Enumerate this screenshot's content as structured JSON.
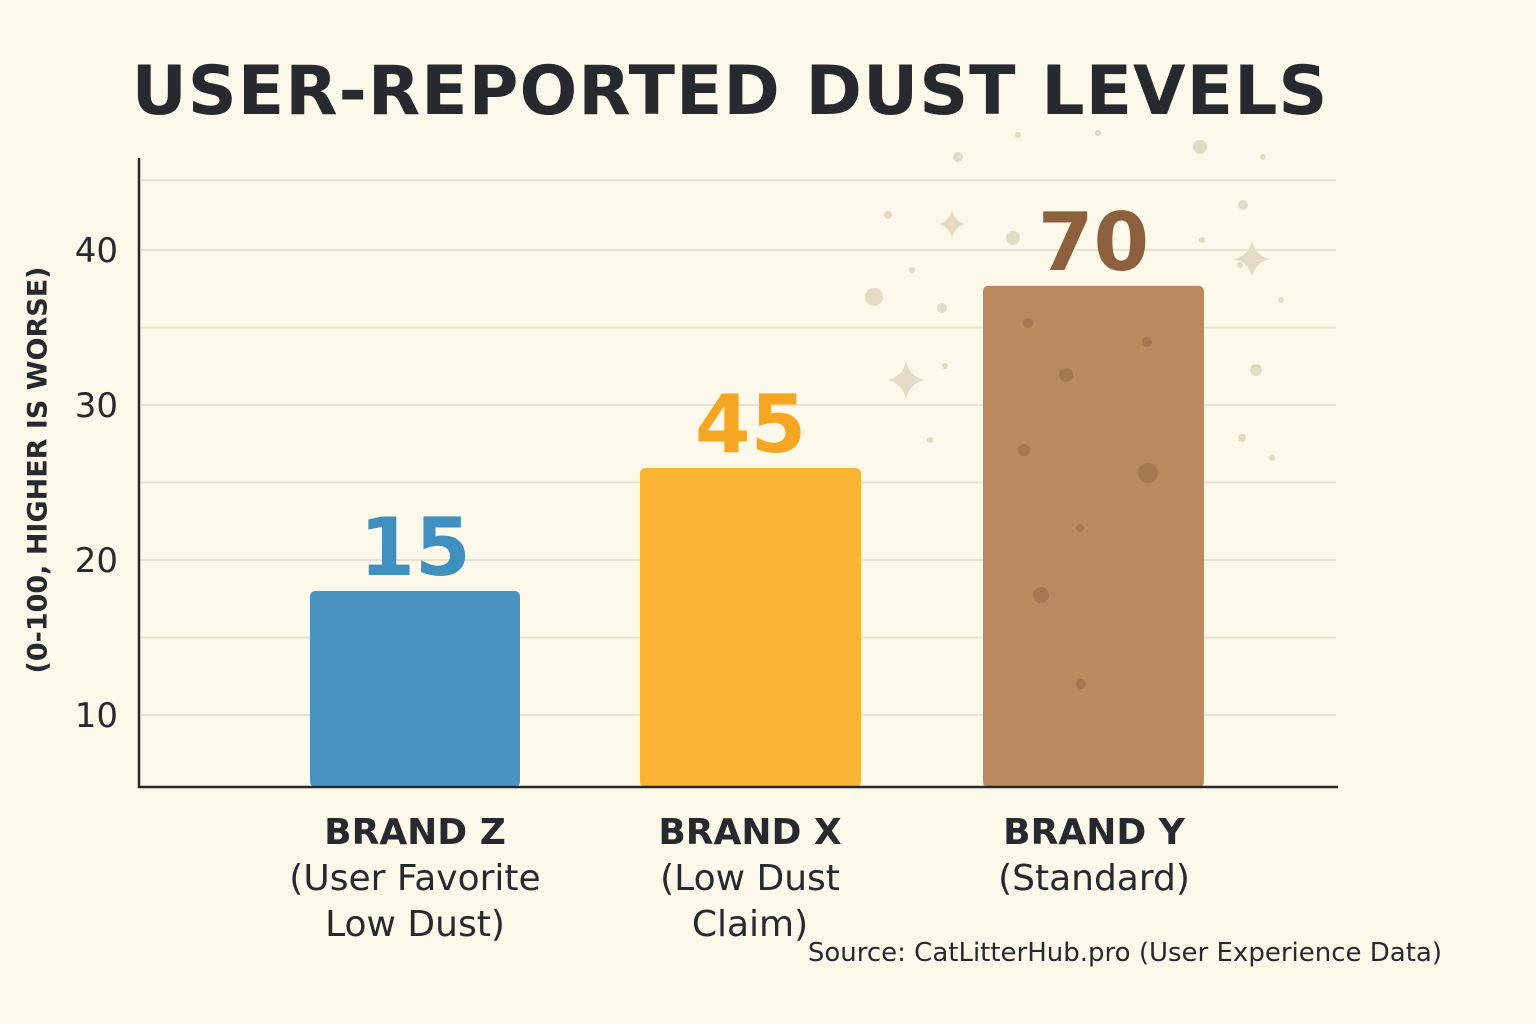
{
  "chart_data": {
    "type": "bar",
    "title": "USER-REPORTED DUST LEVELS",
    "ylabel": "(0-100, HIGHER IS WORSE)",
    "categories": [
      {
        "name": "BRAND Z",
        "sub": "(User Favorite Low Dust)"
      },
      {
        "name": "BRAND X",
        "sub": "(Low Dust Claim)"
      },
      {
        "name": "BRAND Y",
        "sub": "(Standard)"
      }
    ],
    "values": [
      15,
      45,
      70
    ],
    "value_labels": [
      "15",
      "45",
      "70"
    ],
    "colors": [
      "#4a94c1",
      "#fbb534",
      "#b98a60"
    ],
    "label_colors": [
      "#3f8fc0",
      "#f5a623",
      "#8c5f3d"
    ],
    "yticks": [
      "10",
      "20",
      "30",
      "40"
    ],
    "grid": true,
    "source": "Source: CatLitterHub.pro (User Experience Data)"
  }
}
